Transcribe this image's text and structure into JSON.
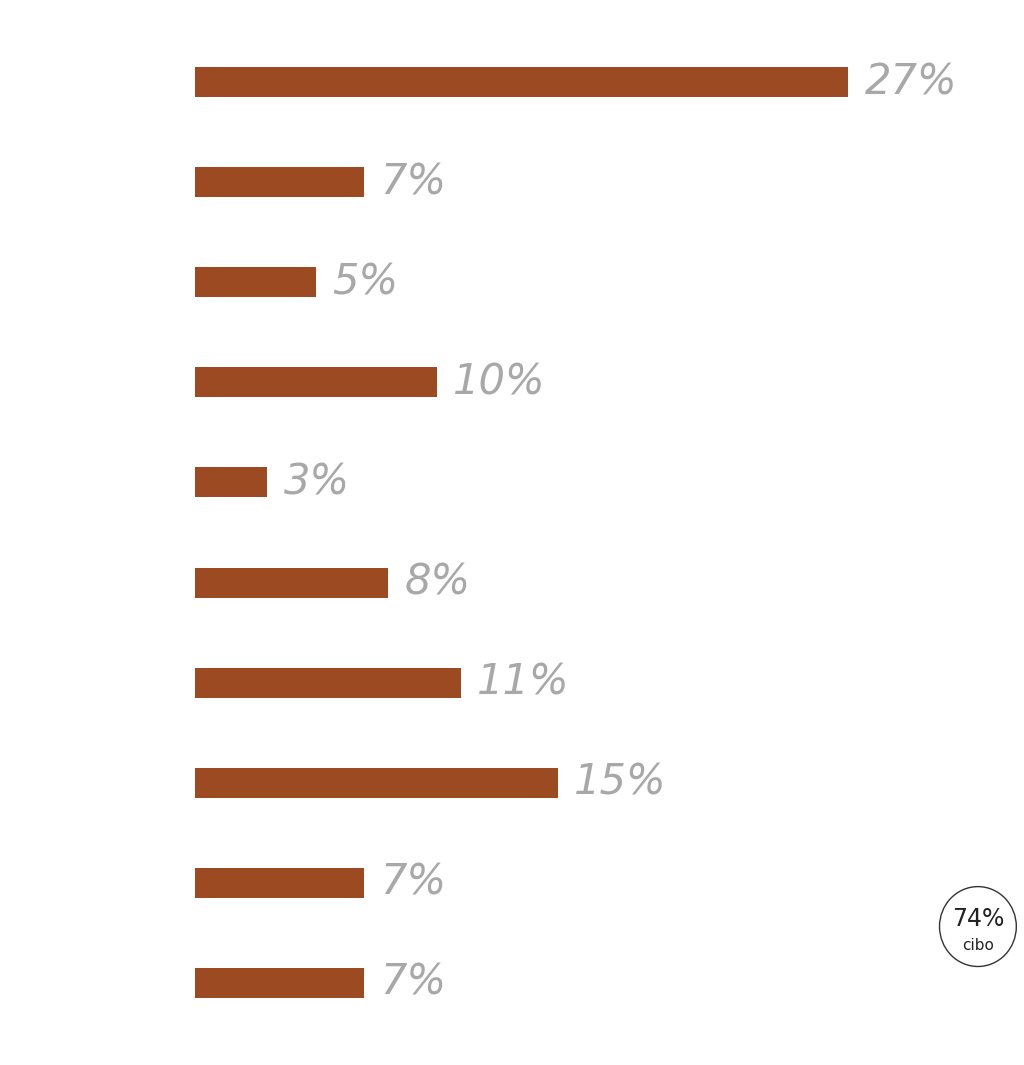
{
  "chart_data": {
    "type": "bar",
    "orientation": "horizontal",
    "categories": [
      null,
      null,
      null,
      null,
      null,
      null,
      null,
      null,
      null,
      null
    ],
    "values": [
      27,
      7,
      5,
      10,
      3,
      8,
      11,
      15,
      7,
      7
    ],
    "value_labels": [
      "27%",
      "7%",
      "5%",
      "10%",
      "3%",
      "8%",
      "11%",
      "15%",
      "7%",
      "7%"
    ],
    "data_labels": true,
    "tick_labels": false,
    "color": "#9c4a22",
    "annotations": [
      "74%",
      "cibo"
    ]
  }
}
